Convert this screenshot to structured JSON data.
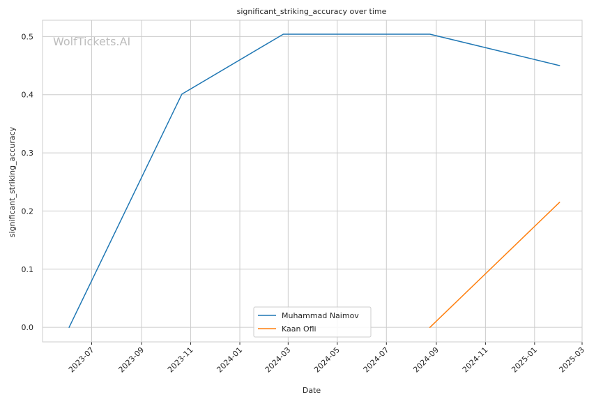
{
  "chart_data": {
    "type": "line",
    "title": "significant_striking_accuracy over time",
    "xlabel": "Date",
    "ylabel": "significant_striking_accuracy",
    "watermark": "WolfTickets.AI",
    "x_axis": {
      "type": "date",
      "range": [
        "2023-05-01",
        "2025-03-01"
      ],
      "ticks": [
        "2023-07",
        "2023-09",
        "2023-11",
        "2024-01",
        "2024-03",
        "2024-05",
        "2024-07",
        "2024-09",
        "2024-11",
        "2025-01",
        "2025-03"
      ]
    },
    "y_axis": {
      "range": [
        -0.025,
        0.528
      ],
      "ticks": [
        "0.0",
        "0.1",
        "0.2",
        "0.3",
        "0.4",
        "0.5"
      ]
    },
    "grid": true,
    "legend_position": "bottom-center",
    "series": [
      {
        "name": "Muhammad Naimov",
        "color": "#1f77b4",
        "points": [
          {
            "x": "2023-06-03",
            "y": 0.0
          },
          {
            "x": "2023-10-21",
            "y": 0.401
          },
          {
            "x": "2024-02-24",
            "y": 0.504
          },
          {
            "x": "2024-08-24",
            "y": 0.504
          },
          {
            "x": "2025-02-01",
            "y": 0.45
          }
        ]
      },
      {
        "name": "Kaan Ofli",
        "color": "#ff7f0e",
        "points": [
          {
            "x": "2024-08-24",
            "y": 0.0
          },
          {
            "x": "2025-02-01",
            "y": 0.215
          }
        ]
      }
    ]
  }
}
